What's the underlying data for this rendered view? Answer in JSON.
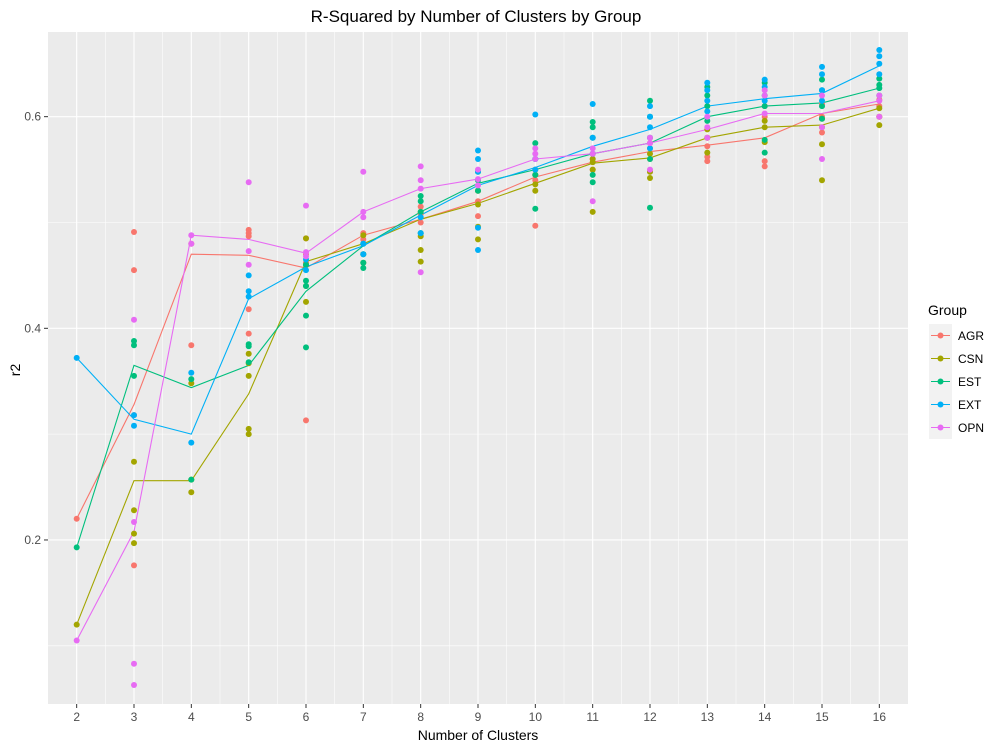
{
  "chart_data": {
    "type": "scatter",
    "title": "R-Squared by Number of Clusters by Group",
    "xlabel": "Number of Clusters",
    "ylabel": "r2",
    "xlim": [
      1.5,
      16.5
    ],
    "ylim": [
      0.045,
      0.68
    ],
    "x_ticks": [
      2,
      3,
      4,
      5,
      6,
      7,
      8,
      9,
      10,
      11,
      12,
      13,
      14,
      15,
      16
    ],
    "y_ticks": [
      0.2,
      0.4,
      0.6
    ],
    "y_tick_labels": [
      "0.2",
      "0.4",
      "0.6"
    ],
    "grid": true,
    "legend": {
      "title": "Group",
      "position": "right"
    },
    "series": [
      {
        "name": "AGR",
        "color": "#F8766D",
        "mean": [
          0.22,
          0.328,
          0.47,
          0.469,
          0.457,
          0.488,
          0.503,
          0.52,
          0.543,
          0.557,
          0.567,
          0.573,
          0.58,
          0.603,
          0.612
        ],
        "points": [
          [
            2,
            0.22
          ],
          [
            3,
            0.491
          ],
          [
            3,
            0.455
          ],
          [
            3,
            0.318
          ],
          [
            3,
            0.176
          ],
          [
            4,
            0.384
          ],
          [
            4,
            0.48
          ],
          [
            5,
            0.493
          ],
          [
            5,
            0.49
          ],
          [
            5,
            0.487
          ],
          [
            5,
            0.418
          ],
          [
            5,
            0.395
          ],
          [
            6,
            0.313
          ],
          [
            6,
            0.462
          ],
          [
            6,
            0.47
          ],
          [
            6,
            0.485
          ],
          [
            7,
            0.49
          ],
          [
            7,
            0.484
          ],
          [
            8,
            0.508
          ],
          [
            8,
            0.5
          ],
          [
            8,
            0.515
          ],
          [
            9,
            0.52
          ],
          [
            9,
            0.506
          ],
          [
            9,
            0.53
          ],
          [
            10,
            0.497
          ],
          [
            10,
            0.54
          ],
          [
            10,
            0.55
          ],
          [
            10,
            0.545
          ],
          [
            11,
            0.55
          ],
          [
            11,
            0.56
          ],
          [
            11,
            0.565
          ],
          [
            12,
            0.56
          ],
          [
            12,
            0.57
          ],
          [
            12,
            0.575
          ],
          [
            12,
            0.548
          ],
          [
            13,
            0.558
          ],
          [
            13,
            0.572
          ],
          [
            13,
            0.58
          ],
          [
            13,
            0.562
          ],
          [
            14,
            0.553
          ],
          [
            14,
            0.558
          ],
          [
            14,
            0.6
          ],
          [
            14,
            0.61
          ],
          [
            15,
            0.585
          ],
          [
            15,
            0.6
          ],
          [
            15,
            0.612
          ],
          [
            16,
            0.6
          ],
          [
            16,
            0.61
          ],
          [
            16,
            0.616
          ]
        ]
      },
      {
        "name": "CSN",
        "color": "#A3A500",
        "mean": [
          0.12,
          0.256,
          0.256,
          0.338,
          0.463,
          0.48,
          0.503,
          0.518,
          0.537,
          0.556,
          0.561,
          0.58,
          0.59,
          0.592,
          0.608
        ],
        "points": [
          [
            2,
            0.12
          ],
          [
            3,
            0.274
          ],
          [
            3,
            0.228
          ],
          [
            3,
            0.206
          ],
          [
            3,
            0.197
          ],
          [
            4,
            0.257
          ],
          [
            4,
            0.245
          ],
          [
            4,
            0.348
          ],
          [
            5,
            0.3
          ],
          [
            5,
            0.305
          ],
          [
            5,
            0.367
          ],
          [
            5,
            0.376
          ],
          [
            5,
            0.355
          ],
          [
            6,
            0.425
          ],
          [
            6,
            0.44
          ],
          [
            6,
            0.46
          ],
          [
            6,
            0.485
          ],
          [
            7,
            0.462
          ],
          [
            7,
            0.47
          ],
          [
            7,
            0.488
          ],
          [
            8,
            0.463
          ],
          [
            8,
            0.474
          ],
          [
            8,
            0.487
          ],
          [
            8,
            0.51
          ],
          [
            9,
            0.484
          ],
          [
            9,
            0.496
          ],
          [
            9,
            0.53
          ],
          [
            9,
            0.517
          ],
          [
            10,
            0.53
          ],
          [
            10,
            0.536
          ],
          [
            10,
            0.545
          ],
          [
            11,
            0.51
          ],
          [
            11,
            0.55
          ],
          [
            11,
            0.557
          ],
          [
            11,
            0.56
          ],
          [
            12,
            0.542
          ],
          [
            12,
            0.548
          ],
          [
            12,
            0.565
          ],
          [
            13,
            0.566
          ],
          [
            13,
            0.58
          ],
          [
            13,
            0.588
          ],
          [
            14,
            0.576
          ],
          [
            14,
            0.59
          ],
          [
            14,
            0.596
          ],
          [
            15,
            0.54
          ],
          [
            15,
            0.574
          ],
          [
            15,
            0.59
          ],
          [
            15,
            0.598
          ],
          [
            16,
            0.592
          ],
          [
            16,
            0.6
          ],
          [
            16,
            0.608
          ]
        ]
      },
      {
        "name": "EST",
        "color": "#00BF7D",
        "mean": [
          0.193,
          0.365,
          0.344,
          0.365,
          0.435,
          0.478,
          0.51,
          0.537,
          0.55,
          0.565,
          0.575,
          0.6,
          0.61,
          0.613,
          0.627
        ],
        "points": [
          [
            2,
            0.193
          ],
          [
            3,
            0.388
          ],
          [
            3,
            0.384
          ],
          [
            3,
            0.355
          ],
          [
            4,
            0.352
          ],
          [
            4,
            0.257
          ],
          [
            5,
            0.385
          ],
          [
            5,
            0.368
          ],
          [
            5,
            0.383
          ],
          [
            6,
            0.382
          ],
          [
            6,
            0.412
          ],
          [
            6,
            0.44
          ],
          [
            6,
            0.445
          ],
          [
            6,
            0.46
          ],
          [
            7,
            0.457
          ],
          [
            7,
            0.462
          ],
          [
            7,
            0.47
          ],
          [
            7,
            0.48
          ],
          [
            8,
            0.49
          ],
          [
            8,
            0.51
          ],
          [
            8,
            0.52
          ],
          [
            8,
            0.525
          ],
          [
            9,
            0.53
          ],
          [
            9,
            0.54
          ],
          [
            9,
            0.548
          ],
          [
            10,
            0.513
          ],
          [
            10,
            0.545
          ],
          [
            10,
            0.56
          ],
          [
            10,
            0.575
          ],
          [
            11,
            0.538
          ],
          [
            11,
            0.545
          ],
          [
            11,
            0.58
          ],
          [
            11,
            0.59
          ],
          [
            11,
            0.595
          ],
          [
            12,
            0.514
          ],
          [
            12,
            0.56
          ],
          [
            12,
            0.58
          ],
          [
            12,
            0.6
          ],
          [
            12,
            0.615
          ],
          [
            13,
            0.596
          ],
          [
            13,
            0.61
          ],
          [
            13,
            0.62
          ],
          [
            13,
            0.628
          ],
          [
            14,
            0.566
          ],
          [
            14,
            0.578
          ],
          [
            14,
            0.61
          ],
          [
            14,
            0.62
          ],
          [
            14,
            0.632
          ],
          [
            15,
            0.598
          ],
          [
            15,
            0.61
          ],
          [
            15,
            0.625
          ],
          [
            15,
            0.635
          ],
          [
            16,
            0.62
          ],
          [
            16,
            0.627
          ],
          [
            16,
            0.63
          ],
          [
            16,
            0.636
          ]
        ]
      },
      {
        "name": "EXT",
        "color": "#00B0F6",
        "mean": [
          0.372,
          0.314,
          0.3,
          0.428,
          0.458,
          0.478,
          0.507,
          0.535,
          0.552,
          0.572,
          0.588,
          0.61,
          0.617,
          0.622,
          0.648
        ],
        "points": [
          [
            2,
            0.372
          ],
          [
            3,
            0.308
          ],
          [
            3,
            0.318
          ],
          [
            4,
            0.292
          ],
          [
            4,
            0.358
          ],
          [
            5,
            0.43
          ],
          [
            5,
            0.45
          ],
          [
            5,
            0.435
          ],
          [
            6,
            0.455
          ],
          [
            6,
            0.465
          ],
          [
            7,
            0.47
          ],
          [
            7,
            0.48
          ],
          [
            8,
            0.49
          ],
          [
            8,
            0.505
          ],
          [
            9,
            0.474
          ],
          [
            9,
            0.495
          ],
          [
            9,
            0.548
          ],
          [
            9,
            0.56
          ],
          [
            9,
            0.568
          ],
          [
            10,
            0.602
          ],
          [
            10,
            0.55
          ],
          [
            10,
            0.56
          ],
          [
            11,
            0.612
          ],
          [
            11,
            0.565
          ],
          [
            11,
            0.58
          ],
          [
            12,
            0.57
          ],
          [
            12,
            0.59
          ],
          [
            12,
            0.6
          ],
          [
            12,
            0.61
          ],
          [
            13,
            0.605
          ],
          [
            13,
            0.615
          ],
          [
            13,
            0.625
          ],
          [
            13,
            0.632
          ],
          [
            14,
            0.615
          ],
          [
            14,
            0.628
          ],
          [
            14,
            0.635
          ],
          [
            15,
            0.615
          ],
          [
            15,
            0.625
          ],
          [
            15,
            0.64
          ],
          [
            15,
            0.647
          ],
          [
            16,
            0.64
          ],
          [
            16,
            0.65
          ],
          [
            16,
            0.657
          ],
          [
            16,
            0.663
          ]
        ]
      },
      {
        "name": "OPN",
        "color": "#E76BF3",
        "mean": [
          0.105,
          0.208,
          0.488,
          0.484,
          0.471,
          0.51,
          0.532,
          0.541,
          0.56,
          0.565,
          0.575,
          0.588,
          0.603,
          0.603,
          0.615
        ],
        "points": [
          [
            2,
            0.105
          ],
          [
            3,
            0.408
          ],
          [
            3,
            0.217
          ],
          [
            3,
            0.083
          ],
          [
            3,
            0.063
          ],
          [
            4,
            0.488
          ],
          [
            4,
            0.48
          ],
          [
            5,
            0.538
          ],
          [
            5,
            0.46
          ],
          [
            5,
            0.473
          ],
          [
            6,
            0.516
          ],
          [
            6,
            0.472
          ],
          [
            6,
            0.468
          ],
          [
            7,
            0.548
          ],
          [
            7,
            0.51
          ],
          [
            7,
            0.505
          ],
          [
            8,
            0.553
          ],
          [
            8,
            0.54
          ],
          [
            8,
            0.532
          ],
          [
            8,
            0.453
          ],
          [
            9,
            0.55
          ],
          [
            9,
            0.535
          ],
          [
            9,
            0.541
          ],
          [
            10,
            0.57
          ],
          [
            10,
            0.565
          ],
          [
            10,
            0.56
          ],
          [
            11,
            0.52
          ],
          [
            11,
            0.565
          ],
          [
            11,
            0.57
          ],
          [
            12,
            0.55
          ],
          [
            12,
            0.575
          ],
          [
            12,
            0.58
          ],
          [
            13,
            0.59
          ],
          [
            13,
            0.6
          ],
          [
            13,
            0.58
          ],
          [
            14,
            0.603
          ],
          [
            14,
            0.62
          ],
          [
            14,
            0.625
          ],
          [
            15,
            0.56
          ],
          [
            15,
            0.59
          ],
          [
            15,
            0.62
          ],
          [
            16,
            0.6
          ],
          [
            16,
            0.615
          ],
          [
            16,
            0.62
          ]
        ]
      }
    ]
  }
}
